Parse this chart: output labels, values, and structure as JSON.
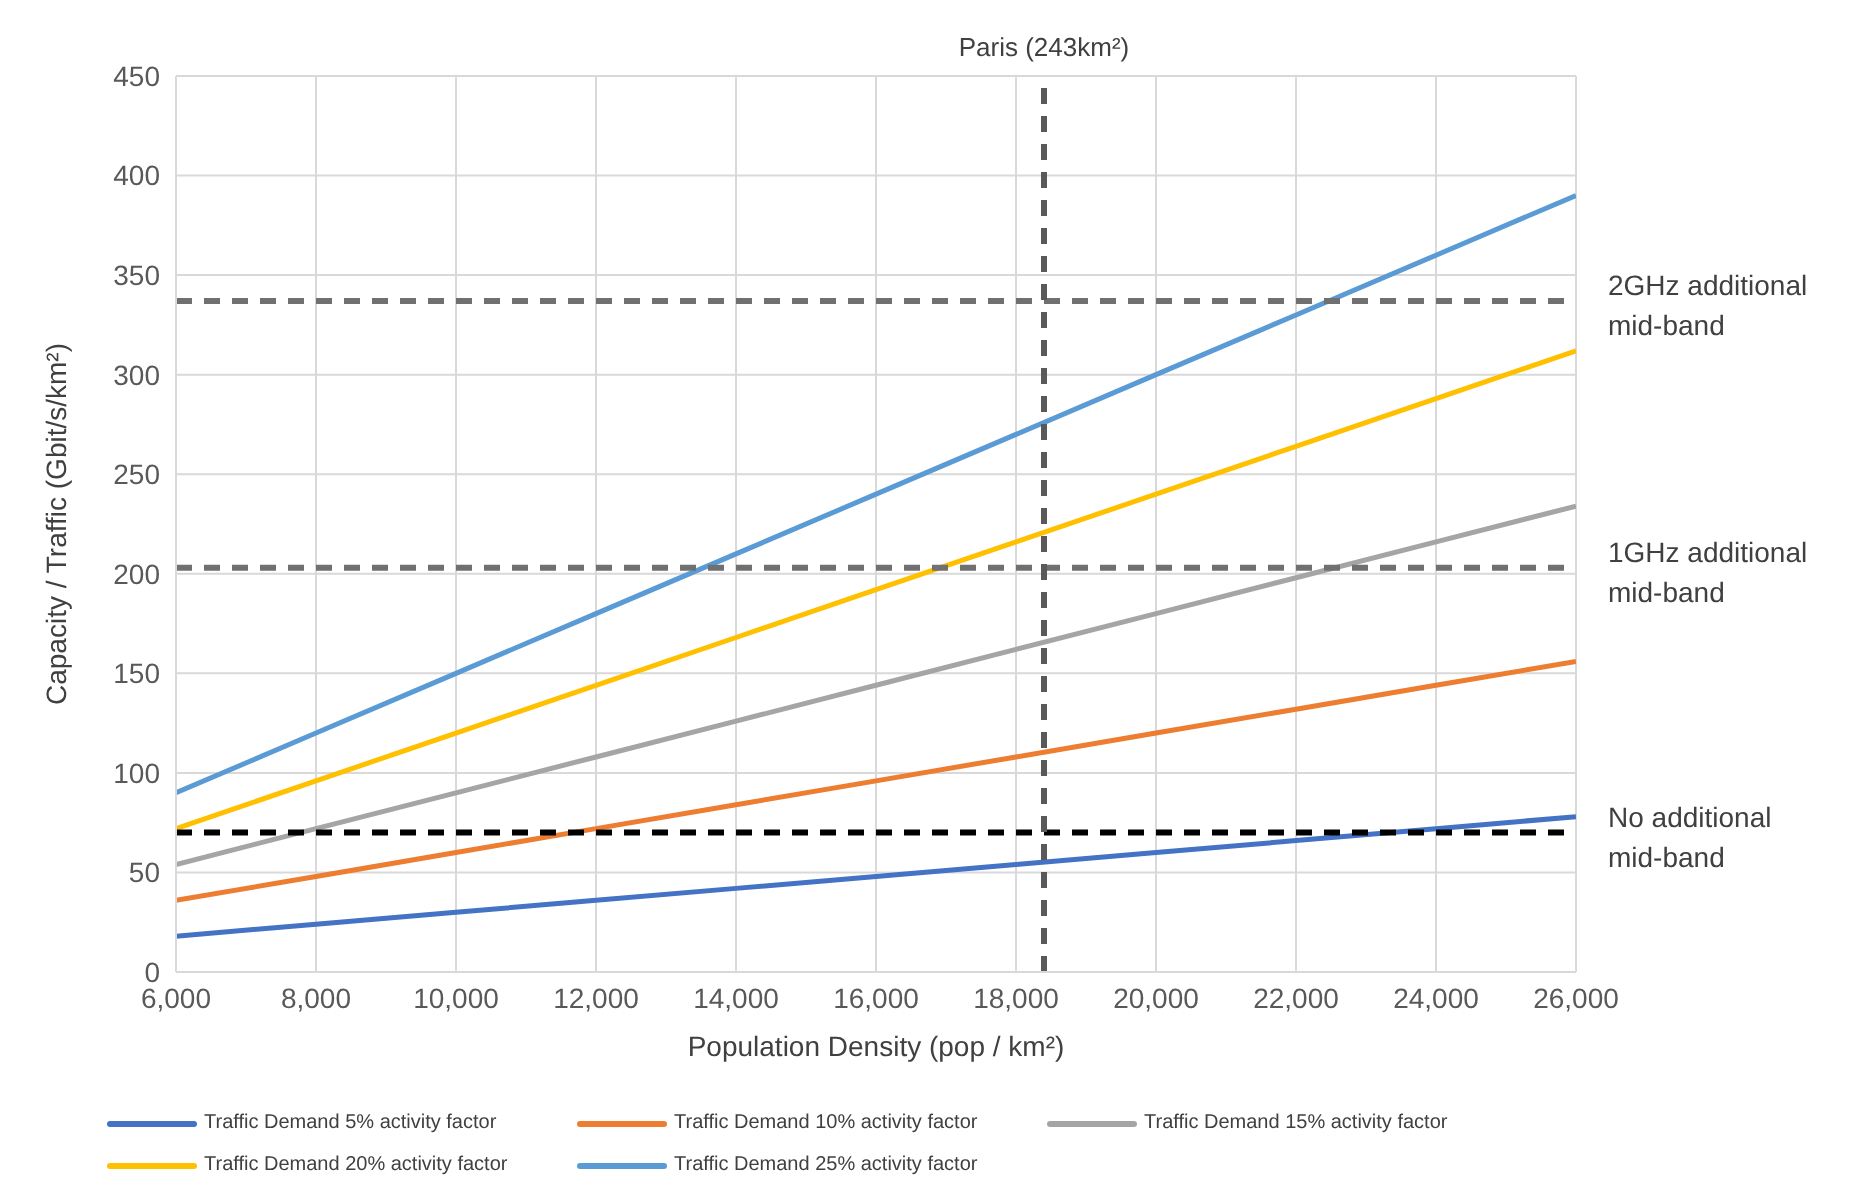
{
  "chart_data": {
    "type": "line",
    "xlabel": "Population Density (pop / km²)",
    "ylabel": "Capacity / Traffic (Gbit/s/km²)",
    "x": [
      6000,
      8000,
      10000,
      12000,
      14000,
      16000,
      18000,
      20000,
      22000,
      24000,
      26000
    ],
    "series": [
      {
        "name": "Traffic Demand 5% activity factor",
        "color": "#4472c4",
        "values": [
          18,
          24,
          30,
          36,
          42,
          48,
          54,
          60,
          66,
          72,
          78
        ]
      },
      {
        "name": "Traffic Demand 10% activity factor",
        "color": "#ed7d31",
        "values": [
          36,
          48,
          60,
          72,
          84,
          96,
          108,
          120,
          132,
          144,
          156
        ]
      },
      {
        "name": "Traffic Demand 15% activity factor",
        "color": "#a5a5a5",
        "values": [
          54,
          72,
          90,
          108,
          126,
          144,
          162,
          180,
          198,
          216,
          234
        ]
      },
      {
        "name": "Traffic Demand 20% activity factor",
        "color": "#ffc000",
        "values": [
          72,
          96,
          120,
          144,
          168,
          192,
          216,
          240,
          264,
          288,
          312
        ]
      },
      {
        "name": "Traffic Demand 25% activity factor",
        "color": "#5b9bd5",
        "values": [
          90,
          120,
          150,
          180,
          210,
          240,
          270,
          300,
          330,
          360,
          390
        ]
      }
    ],
    "xlim": [
      6000,
      26000
    ],
    "xticks": [
      {
        "value": 6000,
        "label": "6,000"
      },
      {
        "value": 8000,
        "label": "8,000"
      },
      {
        "value": 10000,
        "label": "10,000"
      },
      {
        "value": 12000,
        "label": "12,000"
      },
      {
        "value": 14000,
        "label": "14,000"
      },
      {
        "value": 16000,
        "label": "16,000"
      },
      {
        "value": 18000,
        "label": "18,000"
      },
      {
        "value": 20000,
        "label": "20,000"
      },
      {
        "value": 22000,
        "label": "22,000"
      },
      {
        "value": 24000,
        "label": "24,000"
      },
      {
        "value": 26000,
        "label": "26,000"
      }
    ],
    "ylim": [
      0,
      450
    ],
    "yticks": [
      0,
      50,
      100,
      150,
      200,
      250,
      300,
      350,
      400,
      450
    ],
    "ref_lines": [
      {
        "axis": "y",
        "value": 70,
        "label": "No additional mid-band",
        "color": "#000000",
        "line_style": "dashed"
      },
      {
        "axis": "y",
        "value": 203,
        "label": "1GHz additional mid-band",
        "color": "#707070",
        "line_style": "dashed"
      },
      {
        "axis": "y",
        "value": 337,
        "label": "2GHz additional mid-band",
        "color": "#707070",
        "line_style": "dashed"
      },
      {
        "axis": "x",
        "value": 18400,
        "label": "Paris (243km²)",
        "color": "#595959",
        "line_style": "dashed"
      }
    ],
    "grid": true,
    "legend": "bottom",
    "marker": "none",
    "line_style": "solid"
  }
}
